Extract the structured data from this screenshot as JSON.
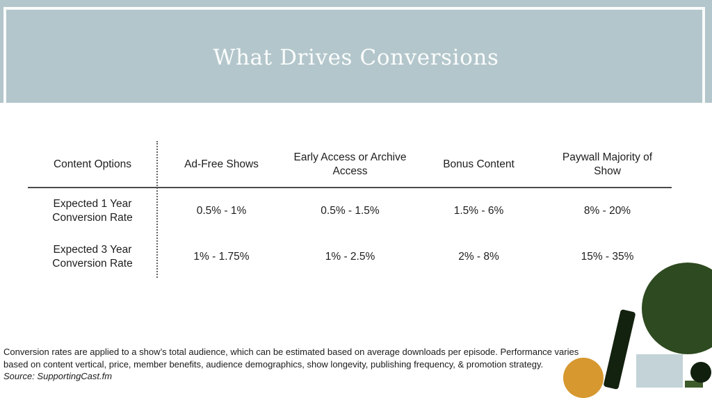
{
  "banner": {
    "title": "What Drives Conversions"
  },
  "table": {
    "columns": [
      "Content Options",
      "Ad-Free Shows",
      "Early Access or Archive\nAccess",
      "Bonus Content",
      "Paywall Majority of\nShow"
    ],
    "rows": [
      {
        "label": "Expected 1 Year\nConversion Rate",
        "values": [
          "0.5% - 1%",
          "0.5% - 1.5%",
          "1.5% - 6%",
          "8% - 20%"
        ]
      },
      {
        "label": "Expected 3 Year\nConversion Rate",
        "values": [
          "1% - 1.75%",
          "1% - 2.5%",
          "2% - 8%",
          "15% - 35%"
        ]
      }
    ]
  },
  "footnote": {
    "line1": "Conversion rates are applied to a show’s total audience, which can be estimated based on average downloads per episode. Performance varies",
    "line2": "based on content vertical, price, member benefits, audience demographics, show longevity, publishing frequency, & promotion strategy.",
    "source": "Source: SupportingCast.fm"
  },
  "colors": {
    "banner_bg": "#b3c6cb",
    "banner_border": "#f9fbfb",
    "title_text": "#fbfdfc",
    "table_text": "#1d1d1d",
    "rule_solid": "#4a4a4a",
    "rule_dotted": "#626262",
    "decor_dark_green": "#2e4a20",
    "decor_near_black_green": "#13210f",
    "decor_orange": "#d6982f",
    "decor_light_blue": "#c3d3d7",
    "decor_bottom_green": "#3d5a2a"
  }
}
